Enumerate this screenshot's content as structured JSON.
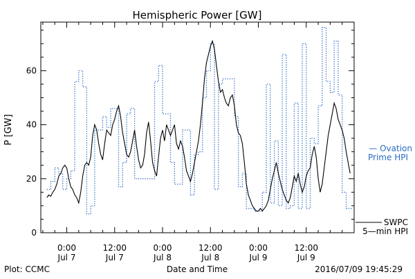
{
  "chart_data": {
    "type": "line",
    "title": "Hemispheric Power [GW]",
    "xlabel": "Date and Time",
    "ylabel": "P [GW]",
    "ylim": [
      0,
      78
    ],
    "grid": false,
    "legend_placement": "right-outside",
    "y_ticks": [
      0,
      20,
      40,
      60
    ],
    "x_ticks": [
      {
        "hour": 0,
        "time": "0:00",
        "day": "Jul 7"
      },
      {
        "hour": 12,
        "time": "12:00",
        "day": "Jul 7"
      },
      {
        "hour": 24,
        "time": "0:00",
        "day": "Jul 8"
      },
      {
        "hour": 36,
        "time": "12:00",
        "day": "Jul 8"
      },
      {
        "hour": 48,
        "time": "0:00",
        "day": "Jul 9"
      },
      {
        "hour": 60,
        "time": "12:00",
        "day": "Jul 9"
      }
    ],
    "series": [
      {
        "name": "SWPC 5-min HPI",
        "color": "#000000",
        "style": "solid",
        "points": [
          [
            -5,
            13
          ],
          [
            -4.5,
            14
          ],
          [
            -4,
            13.5
          ],
          [
            -3.5,
            15
          ],
          [
            -3,
            16
          ],
          [
            -2.5,
            18
          ],
          [
            -2,
            21
          ],
          [
            -1.5,
            22
          ],
          [
            -1,
            24
          ],
          [
            -0.5,
            25
          ],
          [
            0,
            24
          ],
          [
            0.5,
            20
          ],
          [
            1,
            17
          ],
          [
            1.5,
            16
          ],
          [
            2,
            14
          ],
          [
            2.5,
            13
          ],
          [
            3,
            11
          ],
          [
            3.5,
            15
          ],
          [
            4,
            21
          ],
          [
            4.5,
            25
          ],
          [
            5,
            26
          ],
          [
            5.5,
            25
          ],
          [
            6,
            28
          ],
          [
            6.5,
            36
          ],
          [
            7,
            40
          ],
          [
            7.5,
            38
          ],
          [
            8,
            33
          ],
          [
            8.5,
            29
          ],
          [
            9,
            27
          ],
          [
            9.5,
            33
          ],
          [
            10,
            38
          ],
          [
            10.5,
            37
          ],
          [
            11,
            36
          ],
          [
            11.5,
            40
          ],
          [
            12,
            42
          ],
          [
            12.5,
            45
          ],
          [
            13,
            47
          ],
          [
            13.5,
            43
          ],
          [
            14,
            37
          ],
          [
            14.5,
            33
          ],
          [
            15,
            29
          ],
          [
            15.5,
            28
          ],
          [
            16,
            30
          ],
          [
            16.5,
            34
          ],
          [
            17,
            38
          ],
          [
            17.5,
            32
          ],
          [
            18,
            27
          ],
          [
            18.5,
            24
          ],
          [
            19,
            25
          ],
          [
            19.5,
            29
          ],
          [
            20,
            37
          ],
          [
            20.5,
            41
          ],
          [
            21,
            34
          ],
          [
            21.5,
            26
          ],
          [
            22,
            23
          ],
          [
            22.5,
            21
          ],
          [
            23,
            28
          ],
          [
            23.5,
            35
          ],
          [
            24,
            38
          ],
          [
            24.5,
            34
          ],
          [
            25,
            40
          ],
          [
            25.5,
            38
          ],
          [
            26,
            36
          ],
          [
            26.5,
            38
          ],
          [
            27,
            40
          ],
          [
            27.5,
            33
          ],
          [
            28,
            31
          ],
          [
            28.5,
            34
          ],
          [
            29,
            32
          ],
          [
            29.5,
            28
          ],
          [
            30,
            23
          ],
          [
            30.5,
            21
          ],
          [
            31,
            19
          ],
          [
            31.5,
            22
          ],
          [
            32,
            26
          ],
          [
            32.5,
            30
          ],
          [
            33,
            34
          ],
          [
            33.5,
            40
          ],
          [
            34,
            48
          ],
          [
            34.5,
            57
          ],
          [
            35,
            63
          ],
          [
            35.5,
            66
          ],
          [
            36,
            69
          ],
          [
            36.5,
            71
          ],
          [
            37,
            68
          ],
          [
            37.5,
            62
          ],
          [
            38,
            56
          ],
          [
            38.5,
            52
          ],
          [
            39,
            53
          ],
          [
            39.5,
            50
          ],
          [
            40,
            48
          ],
          [
            40.5,
            47
          ],
          [
            41,
            50
          ],
          [
            41.5,
            51
          ],
          [
            42,
            47
          ],
          [
            42.5,
            40
          ],
          [
            43,
            37
          ],
          [
            43.5,
            36
          ],
          [
            44,
            33
          ],
          [
            44.5,
            26
          ],
          [
            45,
            18
          ],
          [
            45.5,
            14
          ],
          [
            46,
            12
          ],
          [
            46.5,
            10
          ],
          [
            47,
            9
          ],
          [
            47.5,
            8
          ],
          [
            48,
            8
          ],
          [
            48.5,
            9
          ],
          [
            49,
            8
          ],
          [
            49.5,
            9
          ],
          [
            50,
            10
          ],
          [
            50.5,
            12
          ],
          [
            51,
            16
          ],
          [
            51.5,
            20
          ],
          [
            52,
            23
          ],
          [
            52.5,
            26
          ],
          [
            53,
            22
          ],
          [
            53.5,
            19
          ],
          [
            54,
            16
          ],
          [
            54.5,
            14
          ],
          [
            55,
            12
          ],
          [
            55.5,
            11
          ],
          [
            56,
            13
          ],
          [
            56.5,
            17
          ],
          [
            57,
            21
          ],
          [
            57.5,
            19
          ],
          [
            58,
            22
          ],
          [
            58.5,
            18
          ],
          [
            59,
            15
          ],
          [
            59.5,
            17
          ],
          [
            60,
            21
          ],
          [
            60.5,
            23
          ],
          [
            61,
            24
          ],
          [
            61.5,
            29
          ],
          [
            62,
            32
          ],
          [
            62.5,
            28
          ],
          [
            63,
            20
          ],
          [
            63.5,
            15
          ],
          [
            64,
            18
          ],
          [
            64.5,
            24
          ],
          [
            65,
            30
          ],
          [
            65.5,
            36
          ],
          [
            66,
            40
          ],
          [
            66.5,
            44
          ],
          [
            67,
            48
          ],
          [
            67.5,
            46
          ],
          [
            68,
            42
          ],
          [
            68.5,
            40
          ],
          [
            69,
            38
          ],
          [
            69.5,
            35
          ],
          [
            70,
            30
          ],
          [
            70.5,
            26
          ],
          [
            71,
            22
          ]
        ]
      },
      {
        "name": "Ovation Prime HPI",
        "color": "#2b6cc4",
        "style": "dotted",
        "steps": [
          [
            -5,
            16
          ],
          [
            -4,
            19
          ],
          [
            -3,
            24
          ],
          [
            -2,
            22
          ],
          [
            -1,
            16
          ],
          [
            0,
            20
          ],
          [
            1,
            23
          ],
          [
            2,
            56
          ],
          [
            3,
            60
          ],
          [
            4,
            54
          ],
          [
            5,
            7
          ],
          [
            6,
            10
          ],
          [
            7,
            38
          ],
          [
            8,
            38
          ],
          [
            9,
            43
          ],
          [
            10,
            39
          ],
          [
            11,
            46
          ],
          [
            12,
            46
          ],
          [
            13,
            17
          ],
          [
            14,
            26
          ],
          [
            15,
            44
          ],
          [
            16,
            46
          ],
          [
            17,
            20
          ],
          [
            18,
            20
          ],
          [
            19,
            20
          ],
          [
            20,
            20
          ],
          [
            21,
            20
          ],
          [
            22,
            56
          ],
          [
            23,
            62
          ],
          [
            24,
            44
          ],
          [
            25,
            44
          ],
          [
            26,
            26
          ],
          [
            27,
            18
          ],
          [
            28,
            18
          ],
          [
            29,
            38
          ],
          [
            30,
            38
          ],
          [
            31,
            14
          ],
          [
            32,
            29
          ],
          [
            33,
            30
          ],
          [
            34,
            50
          ],
          [
            35,
            60
          ],
          [
            36,
            70
          ],
          [
            37,
            16
          ],
          [
            38,
            55
          ],
          [
            39,
            57
          ],
          [
            40,
            57
          ],
          [
            41,
            57
          ],
          [
            42,
            43
          ],
          [
            43,
            17
          ],
          [
            44,
            22
          ],
          [
            45,
            9
          ],
          [
            46,
            9
          ],
          [
            47,
            8
          ],
          [
            48,
            8
          ],
          [
            49,
            15
          ],
          [
            50,
            55
          ],
          [
            51,
            11
          ],
          [
            52,
            34
          ],
          [
            53,
            10
          ],
          [
            54,
            66
          ],
          [
            55,
            9
          ],
          [
            56,
            10
          ],
          [
            57,
            48
          ],
          [
            58,
            9
          ],
          [
            59,
            70
          ],
          [
            60,
            9
          ],
          [
            61,
            35
          ],
          [
            62,
            33
          ],
          [
            63,
            47
          ],
          [
            64,
            76
          ],
          [
            65,
            56
          ],
          [
            66,
            52
          ],
          [
            67,
            71
          ],
          [
            68,
            51
          ],
          [
            69,
            15
          ],
          [
            70,
            9
          ],
          [
            71,
            9
          ]
        ]
      }
    ],
    "legend": [
      {
        "lines": [
          "— Ovation",
          "Prime HPI"
        ],
        "color": "#2b6cc4"
      },
      {
        "lines": [
          "SWPC",
          "5—min HPI"
        ],
        "color": "#000000"
      }
    ]
  },
  "footer": {
    "left": "Plot: CCMC",
    "right": "2016/07/09 19:45:29"
  }
}
